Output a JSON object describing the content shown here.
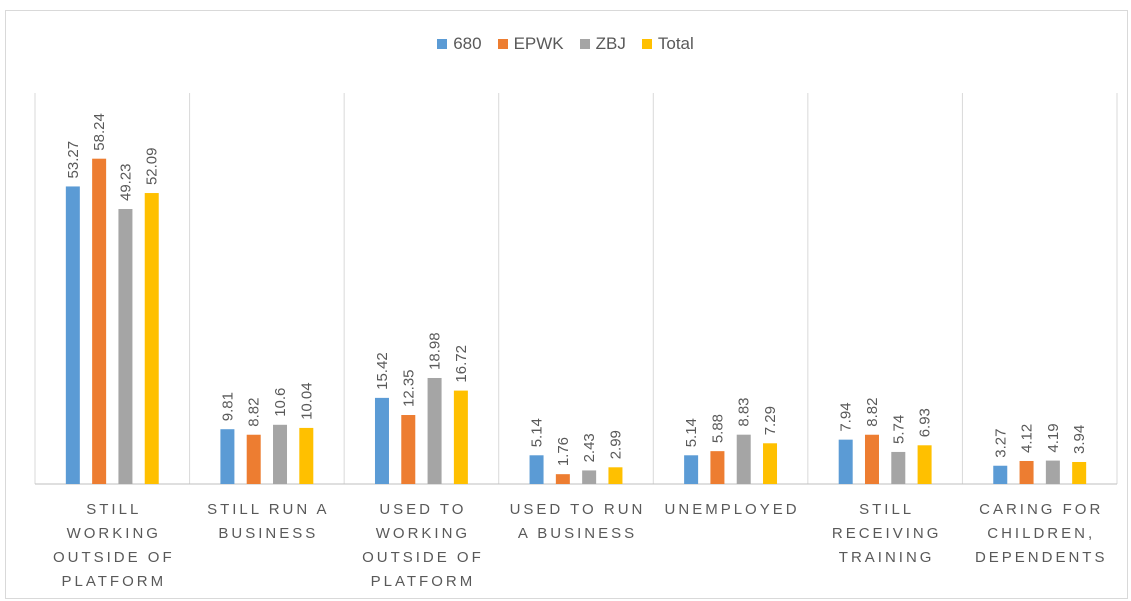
{
  "chart_data": {
    "type": "bar",
    "categories": [
      "STILL WORKING OUTSIDE OF PLATFORM",
      "STILL RUN A BUSINESS",
      "USED TO WORKING OUTSIDE OF PLATFORM",
      "USED TO RUN A BUSINESS",
      "UNEMPLOYED",
      "STILL RECEIVING TRAINING",
      "CARING FOR CHILDREN, DEPENDENTS"
    ],
    "series": [
      {
        "name": "680",
        "color": "#5b9bd5",
        "values": [
          53.27,
          9.81,
          15.42,
          5.14,
          5.14,
          7.94,
          3.27
        ]
      },
      {
        "name": "EPWK",
        "color": "#ed7d31",
        "values": [
          58.24,
          8.82,
          12.35,
          1.76,
          5.88,
          8.82,
          4.12
        ]
      },
      {
        "name": "ZBJ",
        "color": "#a5a5a5",
        "values": [
          49.23,
          10.6,
          18.98,
          2.43,
          8.83,
          5.74,
          4.19
        ]
      },
      {
        "name": "Total",
        "color": "#ffc000",
        "values": [
          52.09,
          10.04,
          16.72,
          2.99,
          7.29,
          6.93,
          3.94
        ]
      }
    ],
    "ylim": [
      0,
      70
    ],
    "legend": "top"
  }
}
